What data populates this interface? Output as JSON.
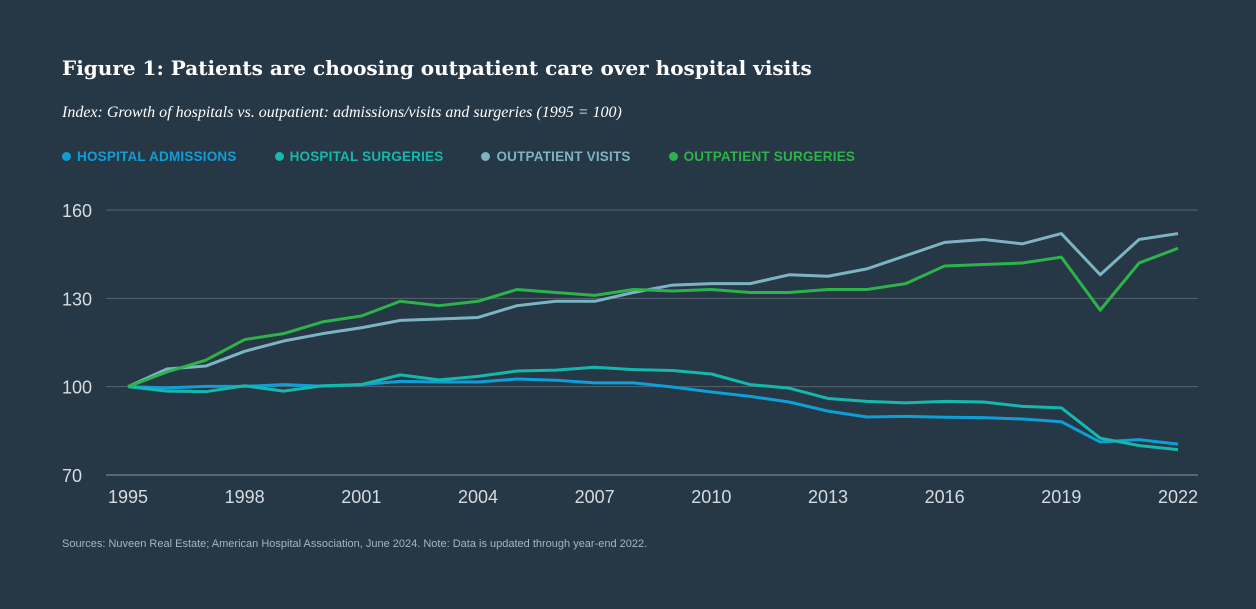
{
  "chart_data": {
    "type": "line",
    "title": "Figure 1: Patients are choosing outpatient care over hospital visits",
    "subtitle": "Index: Growth of hospitals vs. outpatient: admissions/visits and surgeries (1995 = 100)",
    "x": [
      1995,
      1996,
      1997,
      1998,
      1999,
      2000,
      2001,
      2002,
      2003,
      2004,
      2005,
      2006,
      2007,
      2008,
      2009,
      2010,
      2011,
      2012,
      2013,
      2014,
      2015,
      2016,
      2017,
      2018,
      2019,
      2020,
      2021,
      2022
    ],
    "x_ticks": [
      "1995",
      "1998",
      "2001",
      "2004",
      "2007",
      "2010",
      "2013",
      "2016",
      "2019",
      "2022"
    ],
    "y_ticks": [
      "70",
      "100",
      "130",
      "160"
    ],
    "ylim": [
      70,
      160
    ],
    "xlim": [
      1995,
      2022
    ],
    "grid": "horizontal",
    "legend_placement": "top-left",
    "series": [
      {
        "name": "HOSPITAL ADMISSIONS",
        "color": "#0e9fd8",
        "values": [
          100,
          99.6,
          100.1,
          100.1,
          100.7,
          100.2,
          100.7,
          101.8,
          101.6,
          101.6,
          102.6,
          102.2,
          101.3,
          101.3,
          99.9,
          98.2,
          96.7,
          94.8,
          91.7,
          89.7,
          89.9,
          89.6,
          89.5,
          89,
          88.1,
          81.2,
          82,
          80.5
        ]
      },
      {
        "name": "HOSPITAL SURGERIES",
        "color": "#15b8ad",
        "values": [
          100,
          98.5,
          98.3,
          100.3,
          98.5,
          100.3,
          100.7,
          104,
          102.3,
          103.5,
          105.3,
          105.6,
          106.6,
          105.8,
          105.5,
          104.3,
          100.7,
          99.5,
          96,
          95,
          94.5,
          95,
          94.8,
          93.3,
          92.8,
          82.5,
          80,
          78.6
        ]
      },
      {
        "name": "OUTPATIENT VISITS",
        "color": "#7db4c4",
        "values": [
          100,
          106,
          107,
          112,
          115.5,
          118,
          120,
          122.5,
          123,
          123.5,
          127.5,
          129,
          129,
          132,
          134.5,
          135,
          135,
          138,
          137.5,
          140,
          144.5,
          149,
          150,
          148.5,
          152,
          138,
          150,
          152
        ]
      },
      {
        "name": "OUTPATIENT SURGERIES",
        "color": "#2db34a",
        "values": [
          100,
          105,
          109,
          116,
          118,
          122,
          124,
          129,
          127.5,
          129,
          133,
          132,
          131,
          133,
          132.5,
          133,
          132,
          132,
          133,
          133,
          135,
          141,
          141.5,
          142,
          144,
          126,
          142,
          147
        ]
      }
    ]
  },
  "source": "Sources: Nuveen Real Estate; American Hospital Association, June 2024. Note: Data is updated through year-end 2022."
}
